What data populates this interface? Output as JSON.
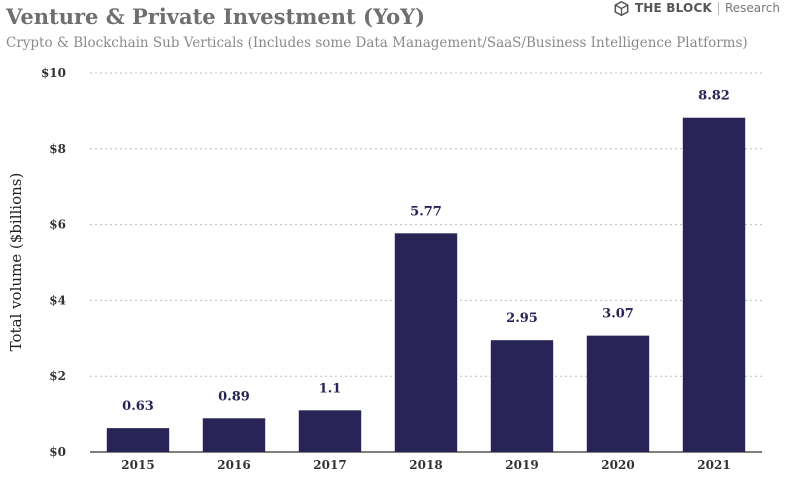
{
  "header": {
    "title": "Venture & Private Investment (YoY)",
    "subtitle": "Crypto & Blockchain Sub Verticals (Includes some Data Management/SaaS/Business Intelligence Platforms)"
  },
  "brand": {
    "name": "THE BLOCK",
    "suffix": "Research",
    "logo_icon": "cube-icon"
  },
  "colors": {
    "bar": "#282456",
    "grid": "#bdbdbd",
    "axis": "#333333",
    "label": "#282456"
  },
  "chart_data": {
    "type": "bar",
    "title": "Venture & Private Investment (YoY)",
    "subtitle": "Crypto & Blockchain Sub Verticals (Includes some Data Management/SaaS/Business Intelligence Platforms)",
    "xlabel": "",
    "ylabel": "Total volume ($billions)",
    "categories": [
      "2015",
      "2016",
      "2017",
      "2018",
      "2019",
      "2020",
      "2021"
    ],
    "values": [
      0.63,
      0.89,
      1.1,
      5.77,
      2.95,
      3.07,
      8.82
    ],
    "value_labels": [
      "0.63",
      "0.89",
      "1.1",
      "5.77",
      "2.95",
      "3.07",
      "8.82"
    ],
    "ylim": [
      0,
      10
    ],
    "yticks": [
      0,
      2,
      4,
      6,
      8,
      10
    ],
    "ytick_labels": [
      "$0",
      "$2",
      "$4",
      "$6",
      "$8",
      "$10"
    ],
    "grid": true,
    "legend": "none"
  }
}
